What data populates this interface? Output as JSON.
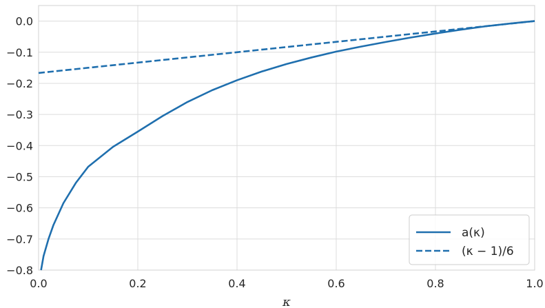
{
  "chart_data": {
    "type": "line",
    "xlabel": "κ",
    "ylabel": "",
    "xlim": [
      0.0,
      1.0
    ],
    "ylim": [
      -0.8,
      0.05
    ],
    "grid": true,
    "legend_position": "bottom-right",
    "x_ticks": [
      "0.0",
      "0.2",
      "0.4",
      "0.6",
      "0.8",
      "1.0"
    ],
    "y_ticks": [
      "0.0",
      "−0.1",
      "−0.2",
      "−0.3",
      "−0.4",
      "−0.5",
      "−0.6",
      "−0.7",
      "−0.8"
    ],
    "color": "#1f6fae",
    "series": [
      {
        "name": "a(κ)",
        "style": "solid",
        "x": [
          0.005,
          0.01,
          0.02,
          0.03,
          0.05,
          0.075,
          0.1,
          0.15,
          0.2,
          0.25,
          0.3,
          0.35,
          0.4,
          0.45,
          0.5,
          0.55,
          0.6,
          0.65,
          0.7,
          0.75,
          0.8,
          0.85,
          0.9,
          0.95,
          1.0
        ],
        "y": [
          -0.8,
          -0.755,
          -0.7,
          -0.655,
          -0.585,
          -0.52,
          -0.468,
          -0.404,
          -0.355,
          -0.305,
          -0.26,
          -0.222,
          -0.19,
          -0.162,
          -0.138,
          -0.117,
          -0.098,
          -0.082,
          -0.067,
          -0.053,
          -0.04,
          -0.028,
          -0.017,
          -0.008,
          0.0
        ]
      },
      {
        "name": "(κ − 1)/6",
        "style": "dashed",
        "x": [
          0.0,
          1.0
        ],
        "y": [
          -0.1667,
          0.0
        ]
      }
    ]
  }
}
